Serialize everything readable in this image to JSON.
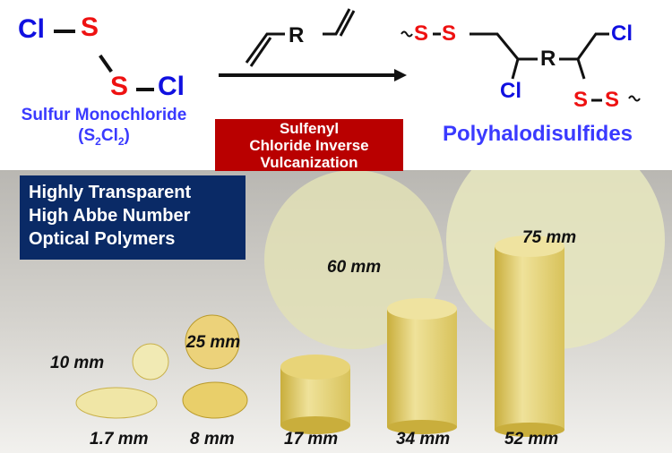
{
  "reactant": {
    "atoms": {
      "cl": "Cl",
      "s": "S"
    },
    "name": "Sulfur Monochloride",
    "formula_s": "S",
    "formula_sub1": "2",
    "formula_cl": "Cl",
    "formula_sub2": "2"
  },
  "diene": {
    "r": "R"
  },
  "reaction": {
    "label_line1": "Sulfenyl",
    "label_line2": "Chloride Inverse",
    "label_line3": "Vulcanization"
  },
  "product": {
    "atoms": {
      "cl": "Cl",
      "s": "S",
      "r": "R"
    },
    "name": "Polyhalodisulfides"
  },
  "feature_box": {
    "line1": "Highly Transparent",
    "line2": "High Abbe Number",
    "line3": "Optical Polymers"
  },
  "samples": {
    "d10": "10 mm",
    "d25": "25 mm",
    "d60": "60 mm",
    "d75": "75 mm",
    "t1_7": "1.7 mm",
    "t8": "8 mm",
    "t17": "17 mm",
    "t34": "34 mm",
    "t52": "52 mm"
  },
  "colors": {
    "chlorine": "#1010e0",
    "sulfur": "#ee1111",
    "reaction_box": "#b90000",
    "feature_box": "#0a2a66",
    "label_blue": "#3a3aff"
  }
}
